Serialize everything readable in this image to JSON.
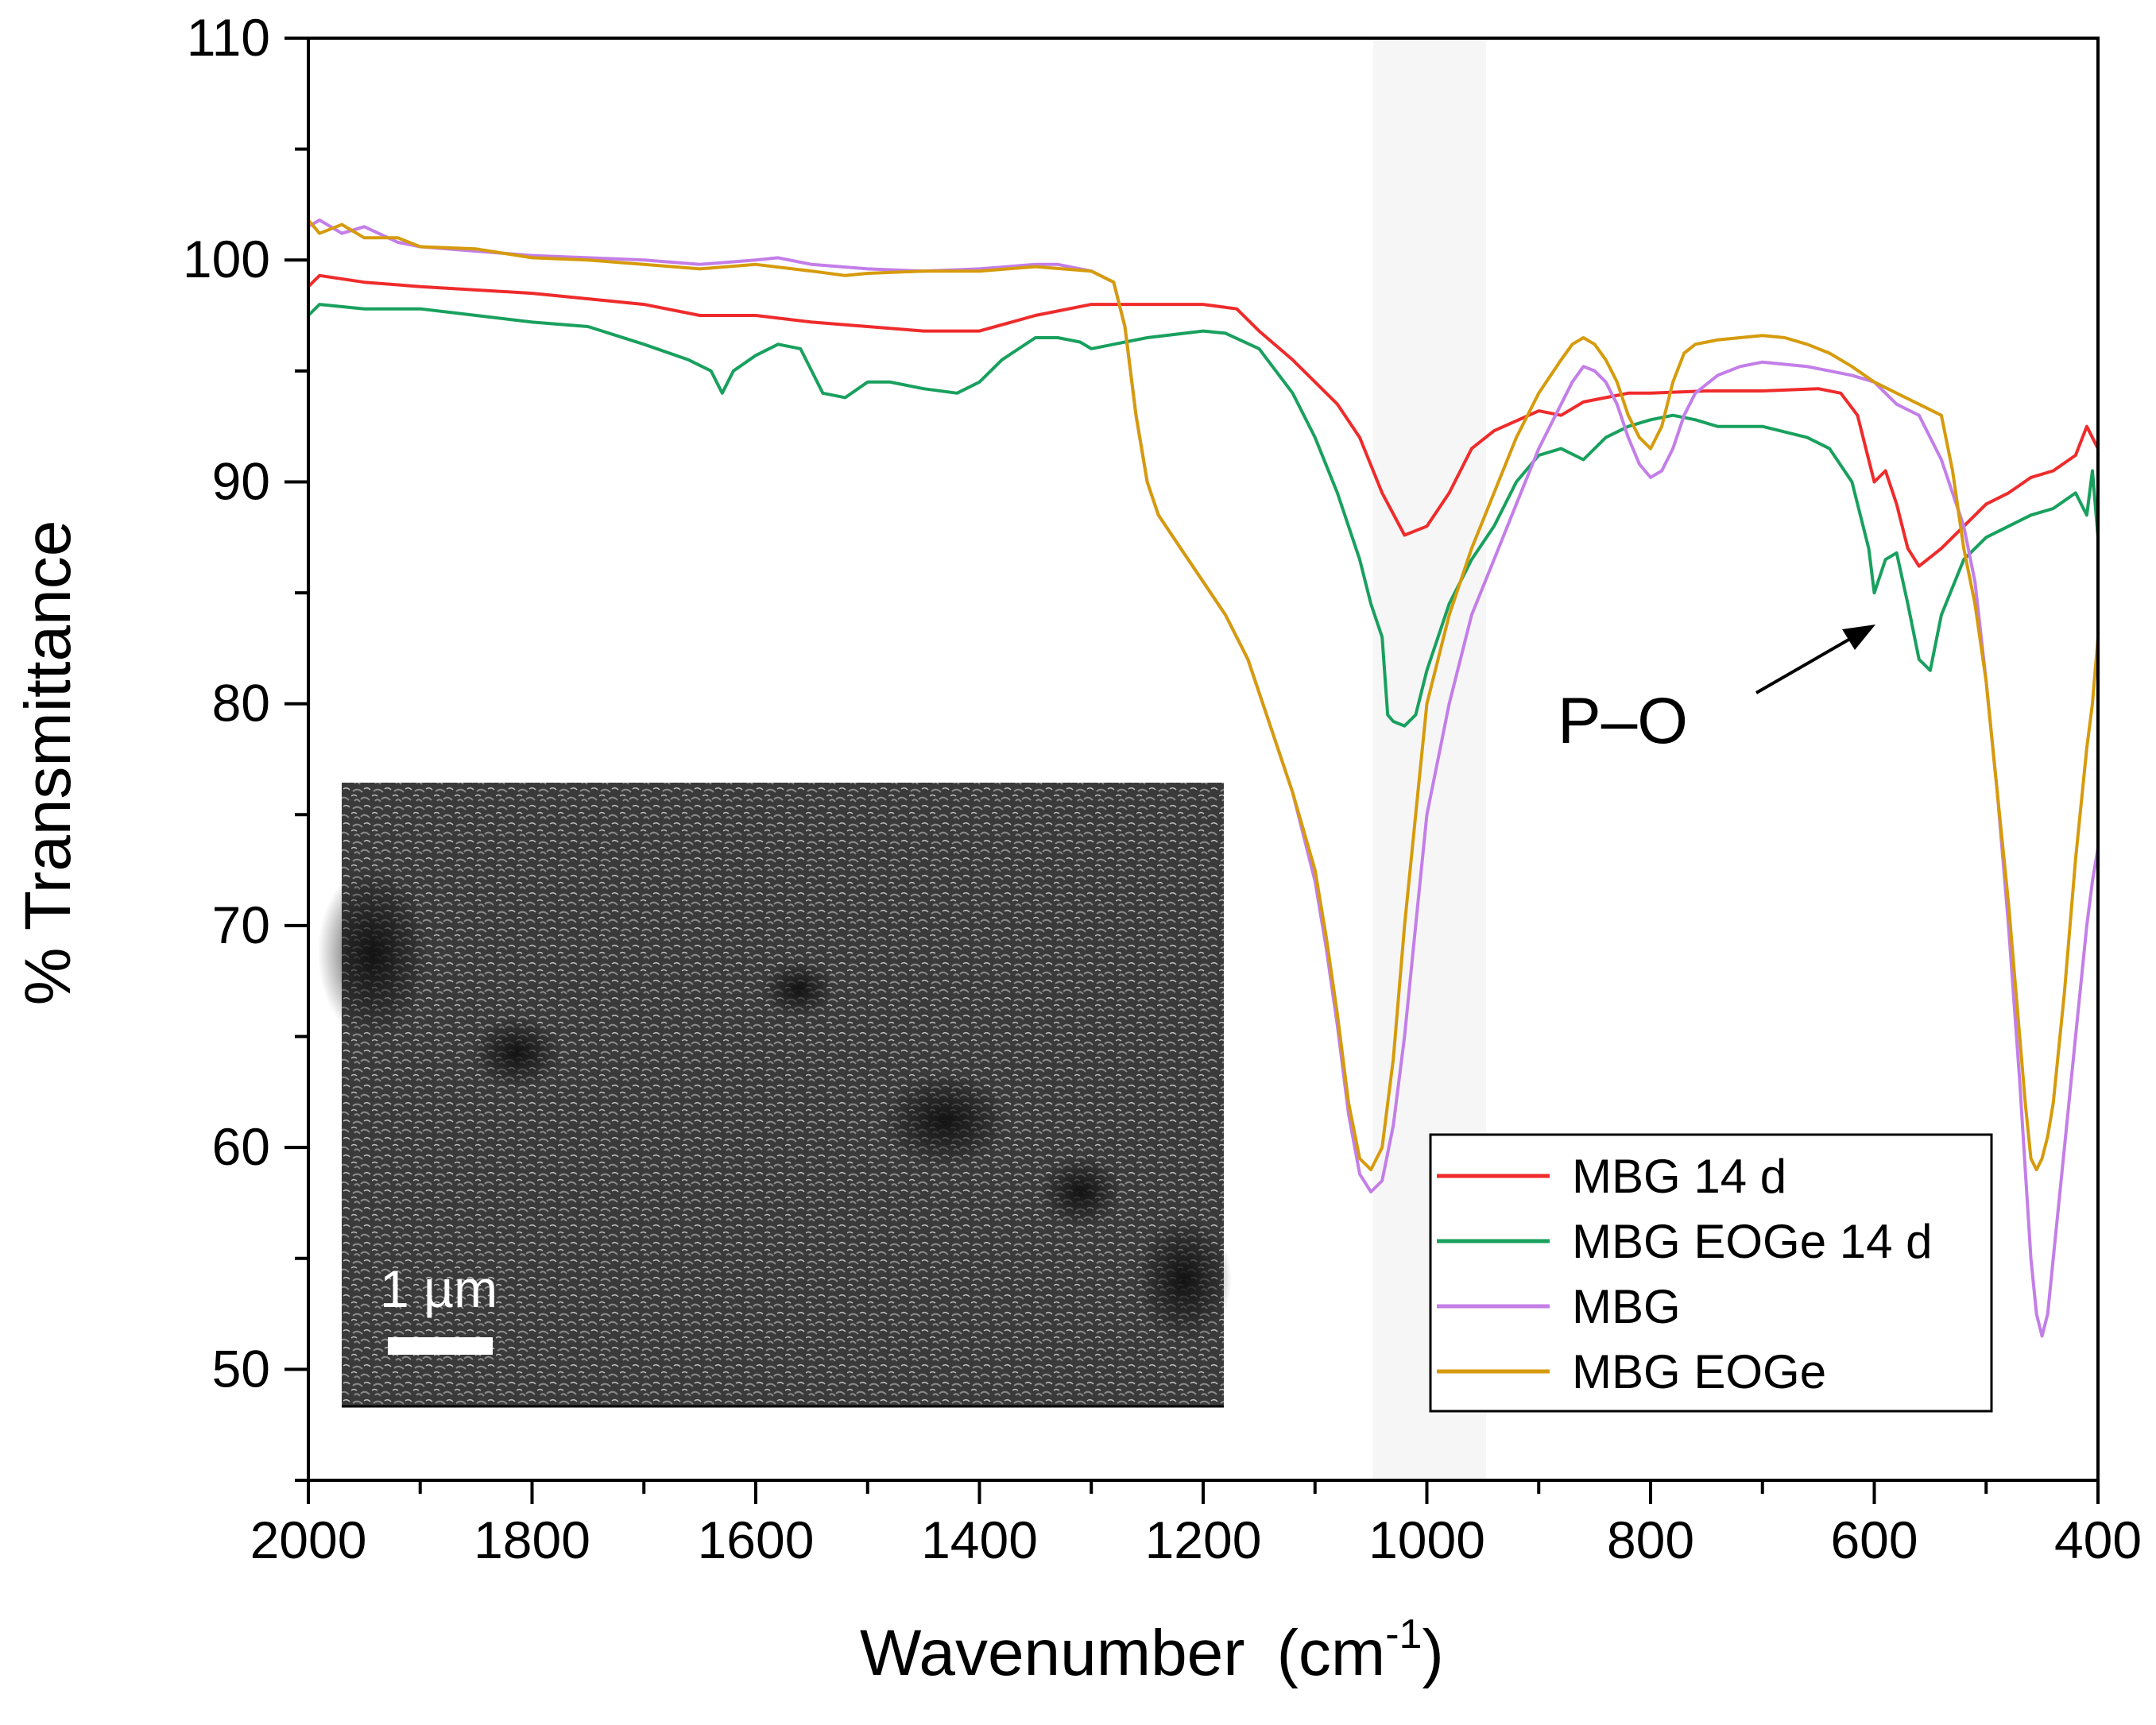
{
  "chart_data": {
    "type": "line",
    "title": "",
    "xlabel": "Wavenumber",
    "xlabel_unit": "(cm",
    "xlabel_unit_sup": "-1",
    "xlabel_unit_close": ")",
    "ylabel": "% Transmittance",
    "xlim": [
      2000,
      400
    ],
    "ylim": [
      45,
      110
    ],
    "x_reversed": true,
    "x_ticks": [
      2000,
      1800,
      1600,
      1400,
      1200,
      1000,
      800,
      600,
      400
    ],
    "y_ticks": [
      50,
      60,
      70,
      80,
      90,
      100,
      110
    ],
    "legend_position": "bottom-right",
    "grid": false,
    "annotations": [
      {
        "text": "P–O",
        "points_to": {
          "x": 570,
          "y": 85.1
        }
      }
    ],
    "inset": {
      "description": "SEM micrograph",
      "scale_bar_label": "1 µm"
    },
    "series": [
      {
        "name": "MBG 14 d",
        "color": "#ef2b2b",
        "x": [
          2000,
          1990,
          1950,
          1900,
          1800,
          1700,
          1650,
          1600,
          1550,
          1500,
          1450,
          1400,
          1350,
          1300,
          1250,
          1200,
          1170,
          1150,
          1120,
          1100,
          1080,
          1060,
          1040,
          1020,
          1000,
          980,
          960,
          940,
          900,
          880,
          860,
          840,
          820,
          800,
          750,
          700,
          650,
          630,
          615,
          600,
          590,
          580,
          570,
          560,
          540,
          520,
          500,
          480,
          460,
          440,
          420,
          410,
          400
        ],
        "y": [
          98.8,
          99.3,
          99.0,
          98.8,
          98.5,
          98.0,
          97.5,
          97.5,
          97.2,
          97.0,
          96.8,
          96.8,
          97.5,
          98.0,
          98.0,
          98.0,
          97.8,
          96.8,
          95.5,
          94.5,
          93.5,
          92.0,
          89.5,
          87.6,
          88.0,
          89.5,
          91.5,
          92.3,
          93.2,
          93.0,
          93.6,
          93.8,
          94.0,
          94.0,
          94.1,
          94.1,
          94.2,
          94.0,
          93.0,
          90.0,
          90.5,
          89.0,
          87.0,
          86.2,
          87.0,
          88.0,
          89.0,
          89.5,
          90.2,
          90.5,
          91.2,
          92.5,
          91.5
        ]
      },
      {
        "name": "MBG EOGe 14 d",
        "color": "#19a05e",
        "x": [
          2000,
          1990,
          1950,
          1900,
          1850,
          1800,
          1750,
          1700,
          1660,
          1640,
          1630,
          1620,
          1600,
          1580,
          1560,
          1540,
          1520,
          1500,
          1480,
          1450,
          1420,
          1400,
          1380,
          1350,
          1330,
          1310,
          1300,
          1280,
          1250,
          1200,
          1180,
          1150,
          1120,
          1100,
          1080,
          1060,
          1050,
          1040,
          1035,
          1030,
          1020,
          1010,
          1000,
          980,
          960,
          940,
          920,
          900,
          880,
          860,
          840,
          820,
          800,
          780,
          760,
          740,
          700,
          660,
          640,
          620,
          605,
          600,
          590,
          580,
          570,
          560,
          550,
          540,
          520,
          500,
          480,
          460,
          440,
          420,
          410,
          405,
          400
        ],
        "y": [
          97.5,
          98.0,
          97.8,
          97.8,
          97.5,
          97.2,
          97.0,
          96.2,
          95.5,
          95.0,
          94.0,
          95.0,
          95.7,
          96.2,
          96.0,
          94.0,
          93.8,
          94.5,
          94.5,
          94.2,
          94.0,
          94.5,
          95.5,
          96.5,
          96.5,
          96.3,
          96.0,
          96.2,
          96.5,
          96.8,
          96.7,
          96.0,
          94.0,
          92.0,
          89.5,
          86.5,
          84.5,
          83.0,
          79.5,
          79.2,
          79.0,
          79.5,
          81.5,
          84.5,
          86.5,
          88.0,
          90.0,
          91.2,
          91.5,
          91.0,
          92.0,
          92.5,
          92.8,
          93.0,
          92.8,
          92.5,
          92.5,
          92.0,
          91.5,
          90.0,
          87.0,
          85.0,
          86.5,
          86.8,
          84.5,
          82.0,
          81.5,
          84.0,
          86.5,
          87.5,
          88.0,
          88.5,
          88.8,
          89.5,
          88.5,
          90.5,
          87.5
        ]
      },
      {
        "name": "MBG",
        "color": "#c37ee8",
        "x": [
          2000,
          1990,
          1970,
          1950,
          1920,
          1900,
          1850,
          1800,
          1750,
          1700,
          1650,
          1600,
          1580,
          1550,
          1500,
          1450,
          1400,
          1350,
          1330,
          1300,
          1280,
          1270,
          1260,
          1250,
          1240,
          1220,
          1200,
          1180,
          1160,
          1140,
          1120,
          1100,
          1090,
          1080,
          1070,
          1060,
          1050,
          1040,
          1030,
          1020,
          1010,
          1000,
          980,
          960,
          940,
          920,
          900,
          880,
          870,
          860,
          850,
          840,
          830,
          820,
          810,
          800,
          790,
          780,
          770,
          760,
          740,
          720,
          700,
          680,
          660,
          640,
          620,
          600,
          580,
          560,
          540,
          520,
          510,
          500,
          490,
          480,
          470,
          465,
          460,
          455,
          450,
          445,
          440,
          430,
          420,
          410,
          405,
          400
        ],
        "y": [
          101.5,
          101.8,
          101.2,
          101.5,
          100.8,
          100.6,
          100.4,
          100.2,
          100.1,
          100.0,
          99.8,
          100.0,
          100.1,
          99.8,
          99.6,
          99.5,
          99.6,
          99.8,
          99.8,
          99.5,
          99.0,
          97.0,
          93.0,
          90.0,
          88.5,
          87.0,
          85.5,
          84.0,
          82.0,
          79.0,
          76.0,
          72.0,
          69.0,
          65.5,
          61.5,
          58.8,
          58.0,
          58.5,
          61.0,
          65.0,
          70.0,
          75.0,
          80.0,
          84.0,
          86.5,
          89.0,
          91.5,
          93.5,
          94.5,
          95.2,
          95.0,
          94.5,
          93.5,
          92.0,
          90.8,
          90.2,
          90.5,
          91.5,
          93.0,
          94.0,
          94.8,
          95.2,
          95.4,
          95.3,
          95.2,
          95.0,
          94.8,
          94.5,
          93.5,
          93.0,
          91.0,
          88.0,
          85.5,
          81.0,
          76.0,
          70.0,
          63.0,
          59.0,
          55.0,
          52.5,
          51.5,
          52.5,
          55.0,
          60.0,
          65.0,
          70.0,
          72.0,
          73.5
        ]
      },
      {
        "name": "MBG EOGe",
        "color": "#d69b0c",
        "x": [
          2000,
          1990,
          1970,
          1950,
          1920,
          1900,
          1850,
          1800,
          1750,
          1700,
          1650,
          1600,
          1550,
          1520,
          1500,
          1450,
          1400,
          1350,
          1300,
          1280,
          1270,
          1260,
          1250,
          1240,
          1220,
          1200,
          1180,
          1160,
          1140,
          1120,
          1100,
          1090,
          1080,
          1070,
          1060,
          1050,
          1040,
          1030,
          1020,
          1010,
          1000,
          980,
          960,
          940,
          920,
          900,
          880,
          870,
          860,
          850,
          840,
          830,
          820,
          810,
          800,
          790,
          780,
          770,
          760,
          740,
          720,
          700,
          680,
          660,
          640,
          620,
          600,
          580,
          560,
          540,
          530,
          520,
          510,
          500,
          490,
          480,
          470,
          465,
          460,
          455,
          450,
          445,
          440,
          430,
          420,
          410,
          405,
          400
        ],
        "y": [
          101.8,
          101.2,
          101.6,
          101.0,
          101.0,
          100.6,
          100.5,
          100.1,
          100.0,
          99.8,
          99.6,
          99.8,
          99.5,
          99.3,
          99.4,
          99.5,
          99.5,
          99.7,
          99.5,
          99.0,
          97.0,
          93.0,
          90.0,
          88.5,
          87.0,
          85.5,
          84.0,
          82.0,
          79.0,
          76.0,
          72.5,
          69.5,
          66.0,
          62.0,
          59.5,
          59.0,
          60.0,
          64.0,
          70.0,
          75.0,
          80.0,
          84.0,
          87.0,
          89.5,
          92.0,
          94.0,
          95.5,
          96.2,
          96.5,
          96.2,
          95.5,
          94.5,
          93.0,
          92.0,
          91.5,
          92.5,
          94.5,
          95.8,
          96.2,
          96.4,
          96.5,
          96.6,
          96.5,
          96.2,
          95.8,
          95.2,
          94.5,
          94.0,
          93.5,
          93.0,
          90.5,
          87.0,
          84.5,
          81.0,
          76.0,
          71.0,
          65.0,
          62.0,
          59.5,
          59.0,
          59.5,
          60.5,
          62.0,
          67.0,
          73.0,
          78.0,
          80.0,
          83.0
        ]
      }
    ]
  }
}
